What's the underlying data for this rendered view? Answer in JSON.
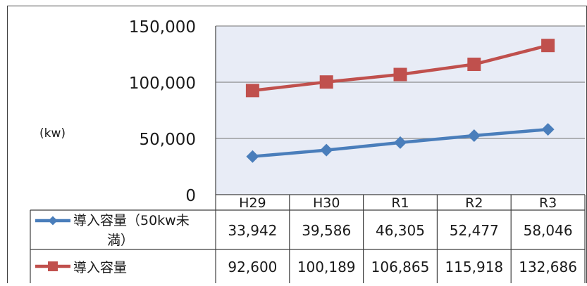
{
  "chart_data": {
    "type": "line",
    "ylabel": "(kw)",
    "categories": [
      "H29",
      "H30",
      "R1",
      "R2",
      "R3"
    ],
    "ylim": [
      0,
      150000
    ],
    "yticks": [
      0,
      50000,
      100000,
      150000
    ],
    "ytick_labels": [
      "0",
      "50,000",
      "100,000",
      "150,000"
    ],
    "grid": true,
    "legend": "data-table",
    "series": [
      {
        "name": "導入容量（50kw未満）",
        "name_lines": [
          "導入容量（50kw未",
          "満）"
        ],
        "color": "#4a7ebb",
        "marker": "diamond",
        "values": [
          33942,
          39586,
          46305,
          52477,
          58046
        ],
        "value_labels": [
          "33,942",
          "39,586",
          "46,305",
          "52,477",
          "58,046"
        ]
      },
      {
        "name": "導入容量",
        "name_lines": [
          "導入容量"
        ],
        "color": "#c0504d",
        "marker": "square",
        "values": [
          92600,
          100189,
          106865,
          115918,
          132686
        ],
        "value_labels": [
          "92,600",
          "100,189",
          "106,865",
          "115,918",
          "132,686"
        ]
      }
    ]
  },
  "colors": {
    "plot_bg": "#e8ecf6",
    "grid": "#8c8c8c",
    "border": "#3f3f3f"
  }
}
